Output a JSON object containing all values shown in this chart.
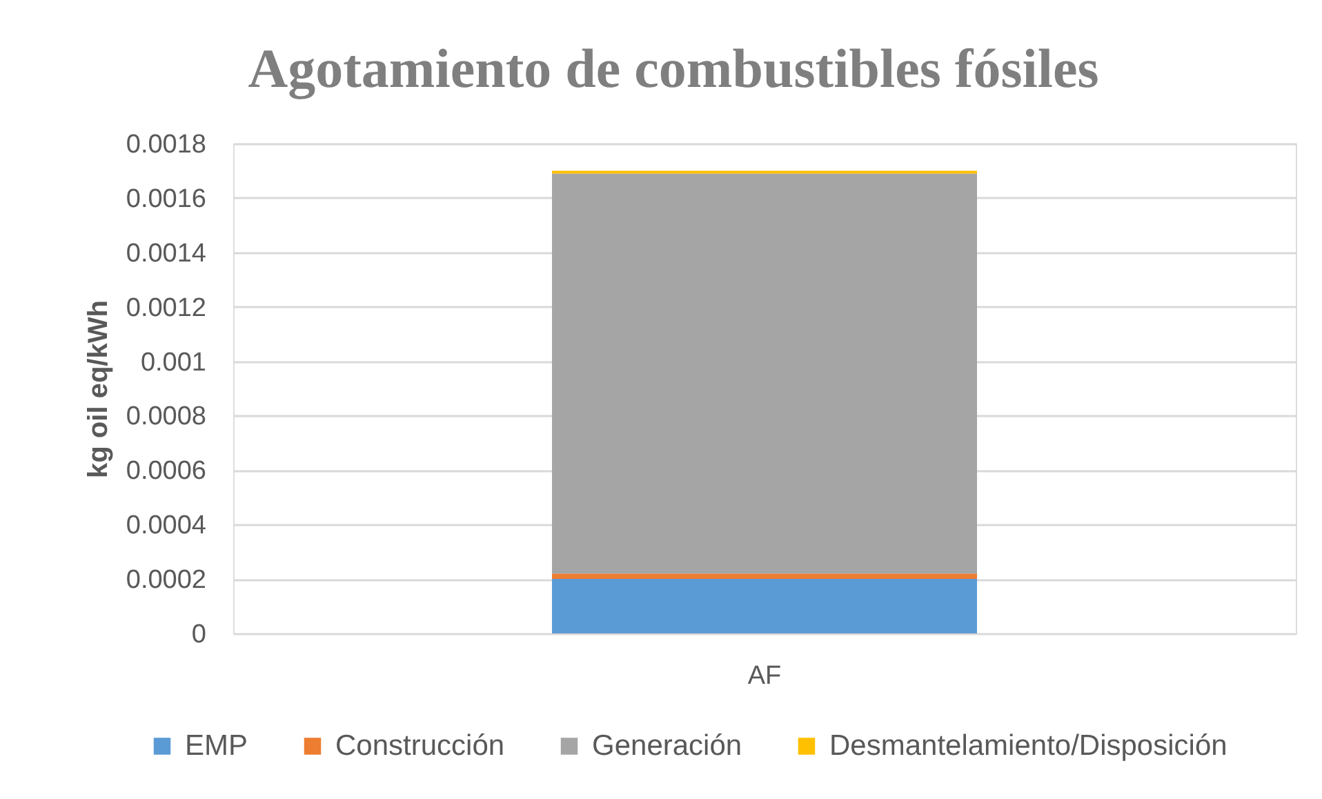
{
  "chart_data": {
    "type": "bar",
    "title": "Agotamiento de combustibles fósiles",
    "ylabel": "kg oil eq/kWh",
    "categories": [
      "AF"
    ],
    "series": [
      {
        "name": "EMP",
        "color": "#5b9bd5",
        "values": [
          0.0002
        ]
      },
      {
        "name": "Construcción",
        "color": "#ed7d31",
        "values": [
          2e-05
        ]
      },
      {
        "name": "Generación",
        "color": "#a5a5a5",
        "values": [
          0.00147
        ]
      },
      {
        "name": "Desmantelamiento/Disposición",
        "color": "#ffc000",
        "values": [
          1e-05
        ]
      }
    ],
    "stacked": true,
    "ylim": [
      0,
      0.0018
    ],
    "yticks": [
      0,
      0.0002,
      0.0004,
      0.0006,
      0.0008,
      0.001,
      0.0012,
      0.0014,
      0.0016,
      0.0018
    ],
    "grid": "y",
    "legend": "bottom"
  }
}
